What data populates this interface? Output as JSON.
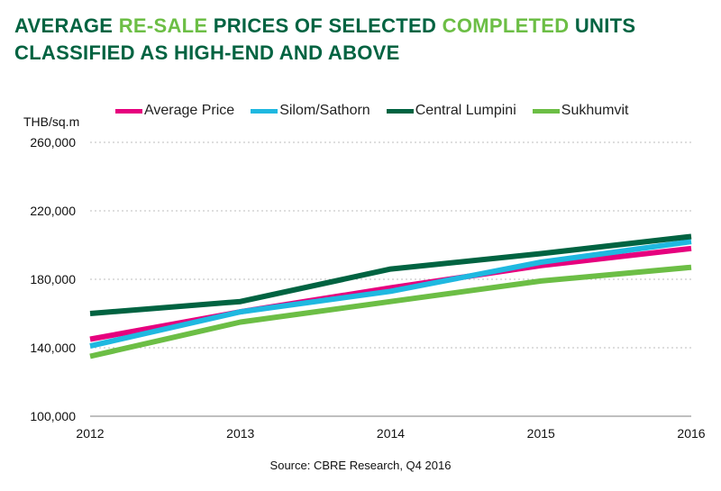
{
  "title": {
    "part1": "AVERAGE ",
    "part2": "RE-SALE",
    "part3": " PRICES OF SELECTED ",
    "part4": "COMPLETED",
    "part5": " UNITS CLASSIFIED AS HIGH-END AND ABOVE",
    "color": "#006341",
    "highlight_color": "#6CBE45"
  },
  "source": "Source: CBRE Research, Q4 2016",
  "chart_data": {
    "type": "line",
    "ylabel": "THB/sq.m",
    "x": [
      "2012",
      "2013",
      "2014",
      "2015",
      "2016"
    ],
    "ylim": [
      100000,
      260000
    ],
    "yticks": [
      "100,000",
      "140,000",
      "180,000",
      "220,000",
      "260,000"
    ],
    "grid": true,
    "legend_position": "top",
    "series": [
      {
        "name": "Average Price",
        "color": "#E6007E",
        "values": [
          145000,
          161000,
          175000,
          188000,
          198000
        ]
      },
      {
        "name": "Silom/Sathorn",
        "color": "#1FB8E0",
        "values": [
          141000,
          161000,
          173000,
          190000,
          202000
        ]
      },
      {
        "name": "Central Lumpini",
        "color": "#006341",
        "values": [
          160000,
          167000,
          186000,
          195000,
          205000
        ]
      },
      {
        "name": "Sukhumvit",
        "color": "#6CBE45",
        "values": [
          135000,
          155000,
          167000,
          179000,
          187000
        ]
      }
    ]
  }
}
